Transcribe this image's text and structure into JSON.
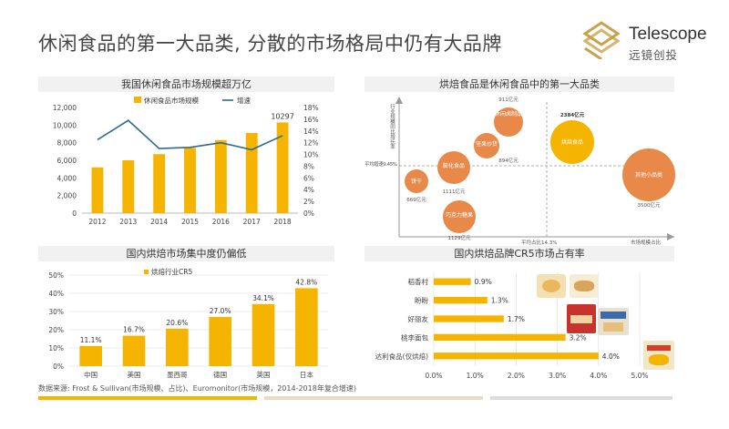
{
  "page": {
    "title": "休闲食品的第一大品类, 分散的市场格局中仍有大品牌",
    "source": "数据来源: Frost & Sullivan(市场规模、占比)、Euromonitor(市场规模，2014-2018年复合增速)",
    "colors": {
      "accent": "#f5b400",
      "line": "#2b6b8c",
      "grid": "#d9d9d9",
      "panel_bg": "#f1f1f1"
    }
  },
  "logo": {
    "name_en": "Telescope",
    "name_cn": "远镜创投"
  },
  "chart_data": [
    {
      "type": "bar",
      "title": "我国休闲食品市场规模超万亿",
      "categories": [
        "2012",
        "2013",
        "2014",
        "2015",
        "2016",
        "2017",
        "2018"
      ],
      "series": [
        {
          "name": "休闲食品市场规模",
          "type": "bar",
          "values": [
            5200,
            6000,
            6700,
            7400,
            8300,
            9100,
            10297
          ]
        },
        {
          "name": "增速",
          "type": "line",
          "axis": "right",
          "values": [
            12.5,
            15.8,
            11.0,
            11.2,
            12.0,
            10.8,
            13.2
          ]
        }
      ],
      "data_labels": {
        "6": "10297"
      },
      "ylim": [
        0,
        12000
      ],
      "yticks": [
        "0",
        "2,000",
        "4,000",
        "6,000",
        "8,000",
        "10,000",
        "12,000"
      ],
      "y2lim": [
        0,
        18
      ],
      "y2ticks": [
        "0%",
        "2%",
        "4%",
        "6%",
        "8%",
        "10%",
        "12%",
        "14%",
        "16%",
        "18%"
      ],
      "legend": "top",
      "grid": false
    },
    {
      "type": "scatter",
      "title": "烘焙食品是休闲食品中的第一大品类",
      "xlabel": "市场规模占比",
      "ylabel": "行业规模同比增长率",
      "ref_x_label": "平均占比14.3%",
      "ref_y_label": "平均增速9.45%",
      "points": [
        {
          "name": "休闲卤制品",
          "size": "911亿元"
        },
        {
          "name": "坚果炒货",
          "size": "894亿元"
        },
        {
          "name": "膨化食品",
          "size": "1111亿元"
        },
        {
          "name": "饼干",
          "size": "669亿元"
        },
        {
          "name": "巧克力糖果",
          "size": "1129亿元"
        },
        {
          "name": "烘焙食品",
          "size": "2384亿元"
        },
        {
          "name": "其他小品类",
          "size": "3500亿元"
        }
      ],
      "grid": false
    },
    {
      "type": "bar",
      "title": "国内烘焙市场集中度仍偏低",
      "categories": [
        "中国",
        "美国",
        "墨西哥",
        "德国",
        "英国",
        "日本"
      ],
      "series": [
        {
          "name": "烘焙行业CR5",
          "values": [
            11.1,
            16.7,
            20.6,
            27.0,
            34.1,
            42.8
          ]
        }
      ],
      "value_labels": [
        "11.1%",
        "16.7%",
        "20.6%",
        "27.0%",
        "34.1%",
        "42.8%"
      ],
      "ylim": [
        0,
        50
      ],
      "yticks": [
        "0%",
        "10%",
        "20%",
        "30%",
        "40%",
        "50%"
      ],
      "legend": "top",
      "grid": true
    },
    {
      "type": "bar",
      "orientation": "horizontal",
      "title": "国内烘焙品牌CR5市场占有率",
      "categories": [
        "稻香村",
        "盼盼",
        "好丽友",
        "桃李面包",
        "达利食品(仅烘焙)"
      ],
      "values": [
        0.9,
        1.3,
        1.7,
        3.2,
        4.0
      ],
      "value_labels": [
        "0.9%",
        "1.3%",
        "1.7%",
        "3.2%",
        "4.0%"
      ],
      "xlim": [
        0,
        5
      ],
      "xticks": [
        "0.0%",
        "1.0%",
        "2.0%",
        "3.0%",
        "4.0%",
        "5.0%"
      ],
      "grid": true
    }
  ]
}
